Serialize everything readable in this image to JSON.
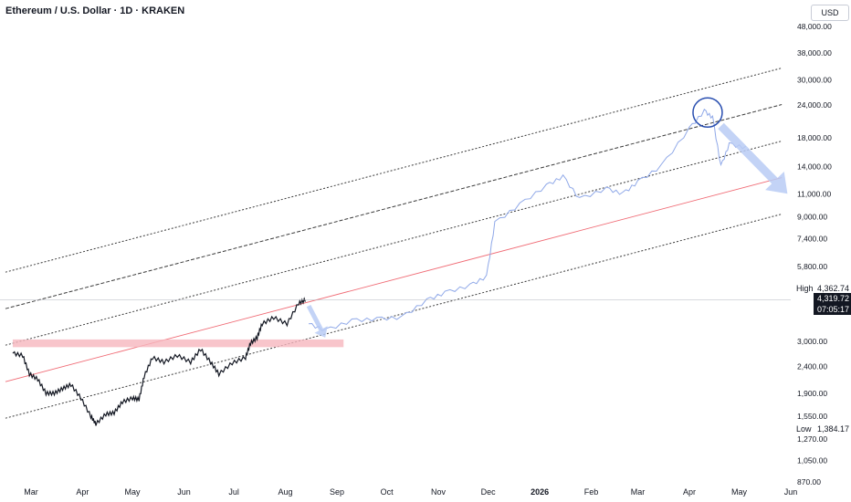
{
  "header": {
    "title": "Ethereum / U.S. Dollar · 1D · KRAKEN",
    "currency": "USD"
  },
  "markers": {
    "high_label": "High",
    "high_value": "4,362.74",
    "low_label": "Low",
    "low_value": "1,384.17",
    "last_price": "4,319.72",
    "countdown": "07:05:17"
  },
  "colors": {
    "candle": "#131722",
    "projection": "#8fa8e8",
    "midline": "#f06b75",
    "zone": "#f6b7be",
    "channel": "#3c3c3c",
    "circle": "#2a4fb0",
    "arrow": "#b9cbf4"
  },
  "chart_data": {
    "type": "line",
    "title": "Ethereum / U.S. Dollar · 1D · KRAKEN",
    "yscale": "log",
    "ylim": [
      870,
      60000
    ],
    "y_ticks": [
      48000,
      38000,
      30000,
      24000,
      18000,
      14000,
      11000,
      9000,
      7400,
      5800,
      3000,
      2400,
      1900,
      1550,
      1270,
      1050,
      870
    ],
    "y_tick_labels": [
      "48,000.00",
      "38,000.00",
      "30,000.00",
      "24,000.00",
      "18,000.00",
      "14,000.00",
      "11,000.00",
      "9,000.00",
      "7,400.00",
      "5,800.00",
      "3,000.00",
      "2,400.00",
      "1,900.00",
      "1,550.00",
      "1,270.00",
      "1,050.00",
      "870.00"
    ],
    "x_ticks": [
      "Mar",
      "Apr",
      "May",
      "Jun",
      "Jul",
      "Aug",
      "Sep",
      "Oct",
      "Nov",
      "Dec",
      "2026",
      "Feb",
      "Mar",
      "Apr",
      "May",
      "Jun"
    ],
    "grid": false,
    "series": [
      {
        "kind": "price",
        "points": [
          [
            "2025-02-18",
            2700
          ],
          [
            "2025-02-24",
            2650
          ],
          [
            "2025-02-28",
            2250
          ],
          [
            "2025-03-05",
            2150
          ],
          [
            "2025-03-10",
            1900
          ],
          [
            "2025-03-15",
            1900
          ],
          [
            "2025-03-20",
            1980
          ],
          [
            "2025-03-25",
            2050
          ],
          [
            "2025-03-31",
            1820
          ],
          [
            "2025-04-06",
            1550
          ],
          [
            "2025-04-09",
            1450
          ],
          [
            "2025-04-15",
            1580
          ],
          [
            "2025-04-20",
            1600
          ],
          [
            "2025-04-25",
            1760
          ],
          [
            "2025-05-01",
            1820
          ],
          [
            "2025-05-05",
            1800
          ],
          [
            "2025-05-08",
            2200
          ],
          [
            "2025-05-13",
            2600
          ],
          [
            "2025-05-20",
            2500
          ],
          [
            "2025-05-28",
            2650
          ],
          [
            "2025-06-05",
            2500
          ],
          [
            "2025-06-11",
            2800
          ],
          [
            "2025-06-17",
            2500
          ],
          [
            "2025-06-22",
            2250
          ],
          [
            "2025-06-30",
            2480
          ],
          [
            "2025-07-08",
            2600
          ],
          [
            "2025-07-11",
            2950
          ],
          [
            "2025-07-15",
            3100
          ],
          [
            "2025-07-18",
            3500
          ],
          [
            "2025-07-25",
            3700
          ],
          [
            "2025-08-02",
            3500
          ],
          [
            "2025-08-09",
            4200
          ],
          [
            "2025-08-13",
            4320
          ]
        ]
      },
      {
        "kind": "projection",
        "points": [
          [
            "2025-08-15",
            3500
          ],
          [
            "2025-08-25",
            3300
          ],
          [
            "2025-09-10",
            3600
          ],
          [
            "2025-09-25",
            3650
          ],
          [
            "2025-10-10",
            3700
          ],
          [
            "2025-10-25",
            4300
          ],
          [
            "2025-11-05",
            4600
          ],
          [
            "2025-11-20",
            4900
          ],
          [
            "2025-11-30",
            5300
          ],
          [
            "2025-12-05",
            8500
          ],
          [
            "2025-12-20",
            10000
          ],
          [
            "2026-01-05",
            11800
          ],
          [
            "2026-01-15",
            12800
          ],
          [
            "2026-01-25",
            10500
          ],
          [
            "2026-02-10",
            11500
          ],
          [
            "2026-02-20",
            11000
          ],
          [
            "2026-03-01",
            12200
          ],
          [
            "2026-03-15",
            14000
          ],
          [
            "2026-04-01",
            19500
          ],
          [
            "2026-04-10",
            22800
          ],
          [
            "2026-04-15",
            21500
          ],
          [
            "2026-04-20",
            14000
          ],
          [
            "2026-04-25",
            17000
          ],
          [
            "2026-05-05",
            16500
          ]
        ]
      }
    ],
    "annotations": [
      {
        "type": "parallel_channel",
        "from": [
          "2025-02-18",
          2900
        ],
        "to": [
          "2026-05-20",
          17500
        ],
        "lines": 5
      },
      {
        "type": "zone",
        "from": "2025-02-18",
        "to": "2025-09-05",
        "ylim": [
          2850,
          3050
        ]
      },
      {
        "type": "circle",
        "at": [
          "2026-04-12",
          22500
        ]
      },
      {
        "type": "arrow",
        "from": [
          "2025-08-15",
          4100
        ],
        "to": [
          "2025-08-25",
          3100
        ]
      },
      {
        "type": "arrow",
        "from": [
          "2026-04-20",
          20000
        ],
        "to": [
          "2026-05-30",
          11000
        ]
      }
    ]
  }
}
